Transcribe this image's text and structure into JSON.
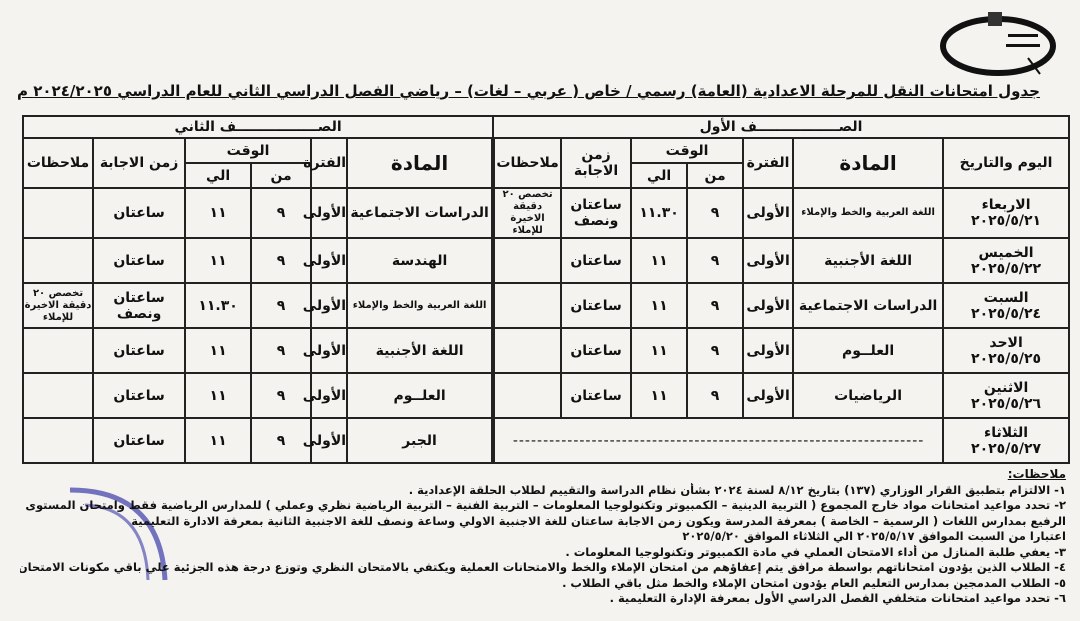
{
  "header": {
    "title": "جدول امتحانات النقل للمرحلة الاعدادية  (العامة)  رسمي / خاص ( عربي – لغات) – رياضي الفصل الدراسي الثاني للعام الدراسي ٢٠٢٤/٢٠٢٥ م"
  },
  "grades": {
    "first": "الصـــــــــــــــــف الأول",
    "second": "الصـــــــــــــــــف الثاني"
  },
  "columns": {
    "day_date": "اليوم والتاريخ",
    "subject": "المادة",
    "period": "الفترة",
    "time": "الوقت",
    "from": "من",
    "to": "الي",
    "duration": "زمن الاجابة",
    "notes": "ملاحظات"
  },
  "rows": [
    {
      "day": "الاربعاء",
      "date": "٢٠٢٥/٥/٢١",
      "g1": {
        "subject": "اللغة العربية والخط والإملاء",
        "period": "الأولى",
        "from": "٩",
        "to": "١١.٣٠",
        "duration": "ساعتان ونصف",
        "notes": "تخصص ٢٠ دقيقة الاخيرة للإملاء"
      },
      "g2": {
        "subject": "الدراسات الاجتماعية",
        "period": "الأولى",
        "from": "٩",
        "to": "١١",
        "duration": "ساعتان",
        "notes": ""
      }
    },
    {
      "day": "الخميس",
      "date": "٢٠٢٥/٥/٢٢",
      "g1": {
        "subject": "اللغة الأجنبية",
        "period": "الأولى",
        "from": "٩",
        "to": "١١",
        "duration": "ساعتان",
        "notes": ""
      },
      "g2": {
        "subject": "الهندسة",
        "period": "الأولى",
        "from": "٩",
        "to": "١١",
        "duration": "ساعتان",
        "notes": ""
      }
    },
    {
      "day": "السبت",
      "date": "٢٠٢٥/٥/٢٤",
      "g1": {
        "subject": "الدراسات الاجتماعية",
        "period": "الأولى",
        "from": "٩",
        "to": "١١",
        "duration": "ساعتان",
        "notes": ""
      },
      "g2": {
        "subject": "اللغة العربية والخط والإملاء",
        "period": "الأولى",
        "from": "٩",
        "to": "١١.٣٠",
        "duration": "ساعتان ونصف",
        "notes": "تخصص ٢٠ دقيقة الاخيرة للإملاء"
      }
    },
    {
      "day": "الاحد",
      "date": "٢٠٢٥/٥/٢٥",
      "g1": {
        "subject": "العلــوم",
        "period": "الأولى",
        "from": "٩",
        "to": "١١",
        "duration": "ساعتان",
        "notes": ""
      },
      "g2": {
        "subject": "اللغة الأجنبية",
        "period": "الأولى",
        "from": "٩",
        "to": "١١",
        "duration": "ساعتان",
        "notes": ""
      }
    },
    {
      "day": "الاثنين",
      "date": "٢٠٢٥/٥/٢٦",
      "g1": {
        "subject": "الرياضيات",
        "period": "الأولى",
        "from": "٩",
        "to": "١١",
        "duration": "ساعتان",
        "notes": ""
      },
      "g2": {
        "subject": "العلــوم",
        "period": "الأولى",
        "from": "٩",
        "to": "١١",
        "duration": "ساعتان",
        "notes": ""
      }
    },
    {
      "day": "الثلاثاء",
      "date": "٢٠٢٥/٥/٢٧",
      "g1": {
        "empty": "--------------------------------------------------------------------"
      },
      "g2": {
        "subject": "الجبر",
        "period": "الأولى",
        "from": "٩",
        "to": "١١",
        "duration": "ساعتان",
        "notes": ""
      }
    }
  ],
  "notes": {
    "heading": "ملاحظات:",
    "items": [
      "١- الالتزام بتطبيق القرار الوزاري (١٣٧) بتاريخ ٨/١٢ لسنة ٢٠٢٤ بشأن نظام الدراسة والتقييم لطلاب الحلقة الإعدادية .",
      "٢- تحدد مواعيد امتحانات مواد خارج المجموع ( التربية الدينية – الكمبيوتر وتكنولوجيا المعلومات – التربية الفنية – التربية الرياضية نظري وعملي ) للمدارس الرياضية فقط وامتحان المستوى",
      "الرفيع بمدارس اللغات ( الرسمية – الخاصة ) بمعرفة المدرسة ويكون زمن الاجابة ساعتان للغة الاجنبية الاولي وساعة ونصف للغة الاجنبية الثانية بمعرفة الادارة التعليمية",
      "اعتبارا من السبت الموافق ٢٠٢٥/٥/١٧ الي الثلاثاء الموافق ٢٠٢٥/٥/٢٠",
      "٣- يعفي طلبة المنازل من أداء الامتحان العملي في مادة الكمبيوتر وتكنولوجيا المعلومات .",
      "٤- الطلاب الذين يؤدون امتحاناتهم بواسطة مرافق يتم إعفاؤهم من امتحان الإملاء والخط والامتحانات العملية ويكتفي بالامتحان النظري وتوزع درجة هذه الجزئية علي باقي مكونات الامتحان",
      "٥- الطلاب المدمجين بمدارس التعليم العام يؤدون امتحان الإملاء والخط مثل باقي الطلاب .",
      "٦- تحدد مواعيد امتحانات متخلفي الفصل الدراسي الأول بمعرفة الإدارة التعليمية ."
    ]
  },
  "colors": {
    "ink": "#111111",
    "paper": "#f4f3f0",
    "stamp": "#3a3aa8"
  }
}
